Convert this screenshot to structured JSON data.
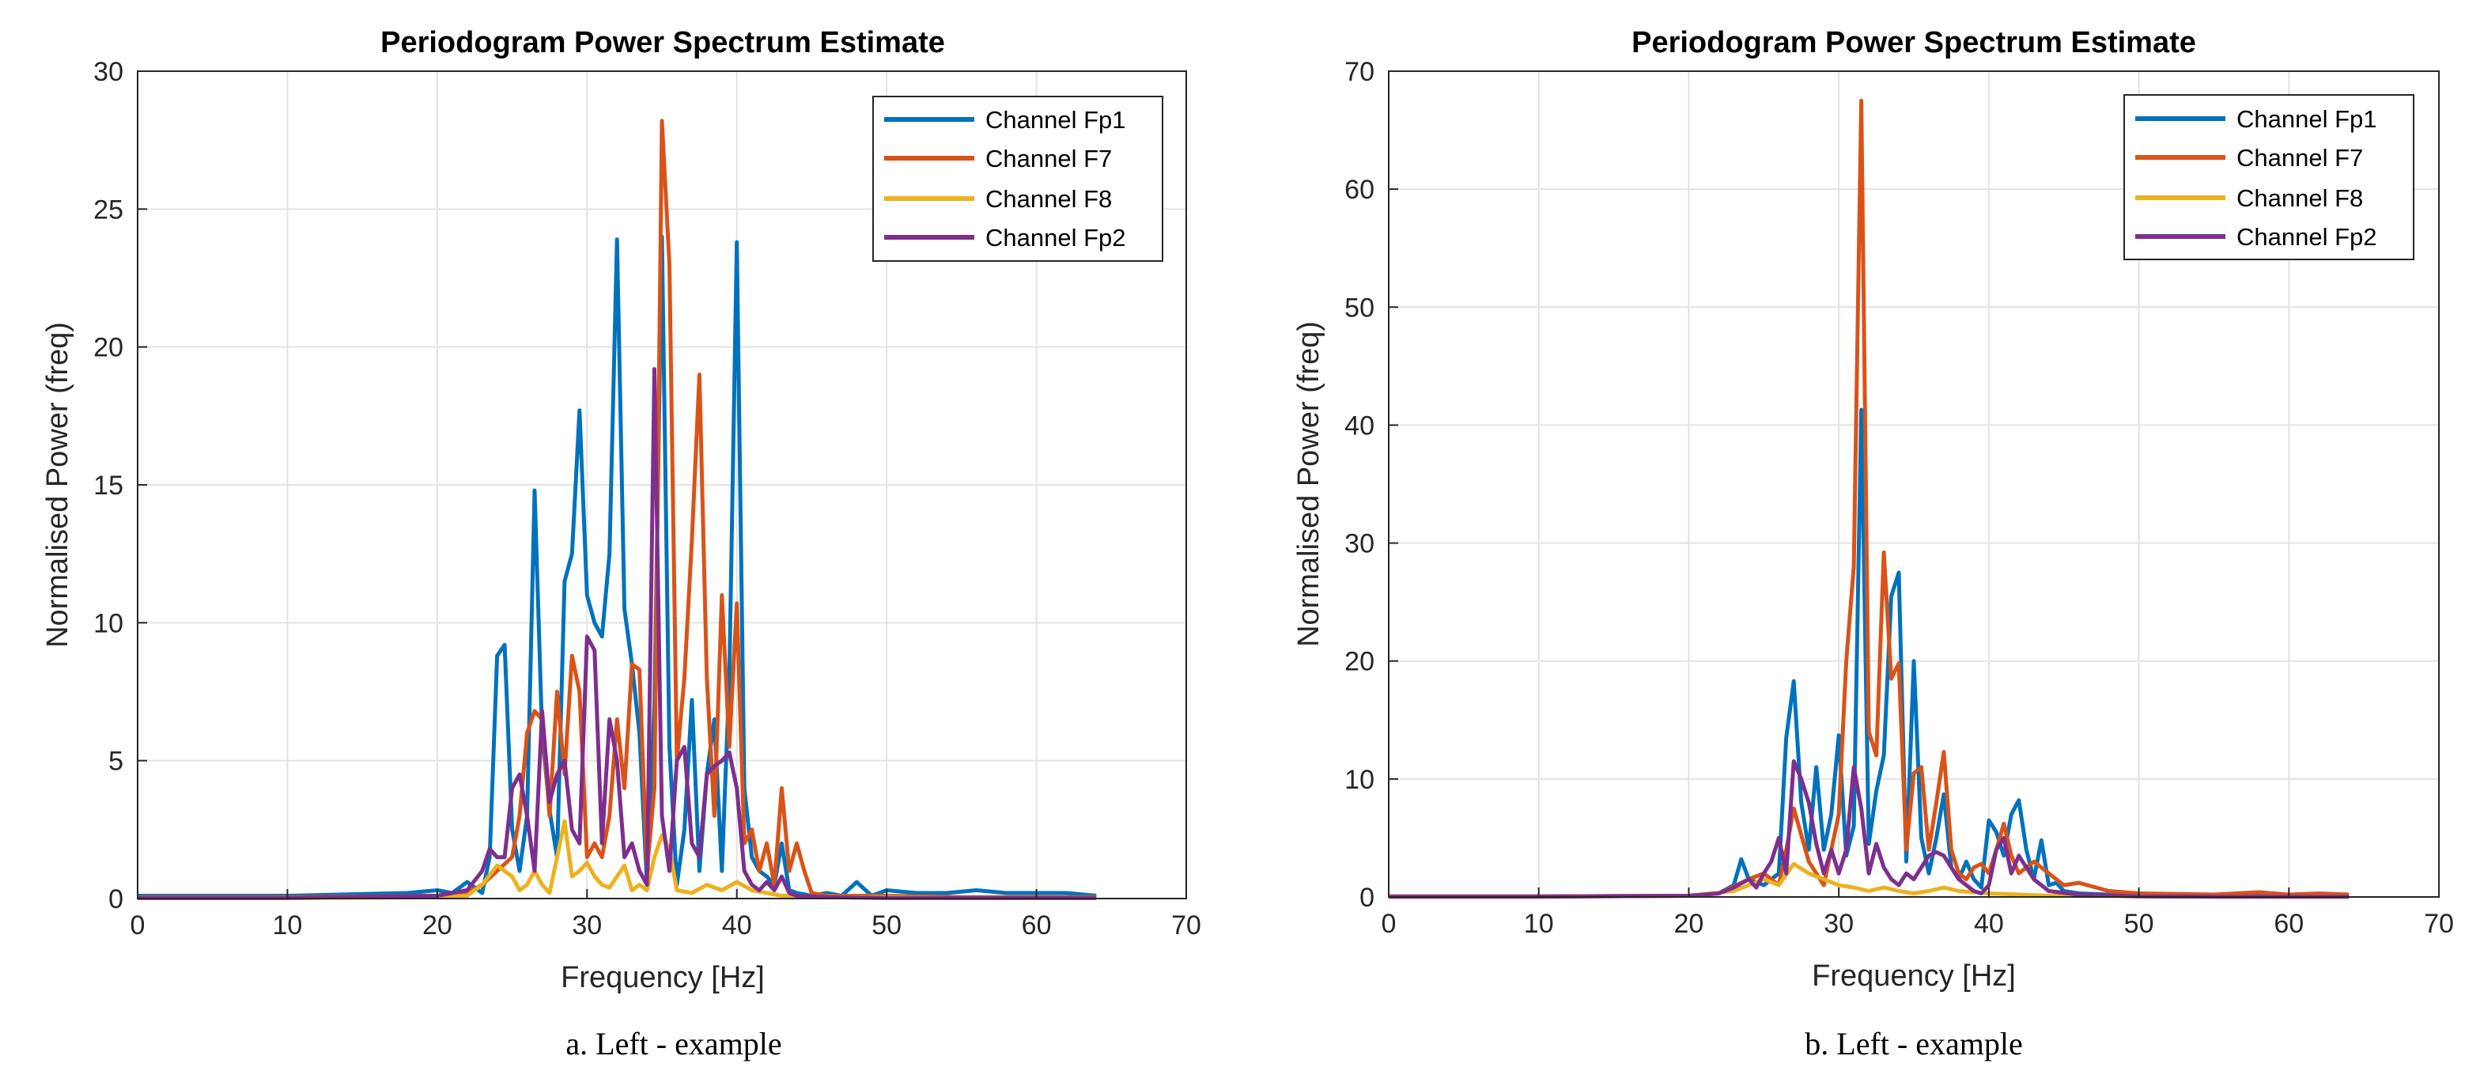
{
  "colors": {
    "Fp1": "#0072BD",
    "F7": "#D95319",
    "F8": "#EDB120",
    "Fp2": "#7E2F8E",
    "grid": "#e3e3e3",
    "axis": "#262626"
  },
  "chart_data": [
    {
      "type": "line",
      "title": "Periodogram Power Spectrum Estimate",
      "xlabel": "Frequency [Hz]",
      "ylabel": "Normalised Power (freq)",
      "caption": "a.  Left - example",
      "xlim": [
        0,
        70
      ],
      "ylim": [
        0,
        30
      ],
      "xticks": [
        0,
        10,
        20,
        30,
        40,
        50,
        60,
        70
      ],
      "yticks": [
        0,
        5,
        10,
        15,
        20,
        25,
        30
      ],
      "grid": true,
      "legend_position": "top-right",
      "series": [
        {
          "name": "Channel Fp1",
          "color_key": "Fp1",
          "x": [
            0,
            10,
            18,
            20,
            21,
            22,
            23,
            23.5,
            24,
            24.5,
            25,
            25.5,
            26,
            26.5,
            27,
            27.5,
            28,
            28.5,
            29,
            29.5,
            30,
            30.5,
            31,
            31.5,
            32,
            32.5,
            33,
            33.5,
            34,
            34.5,
            35,
            35.5,
            36,
            36.5,
            37,
            37.5,
            38,
            38.5,
            39,
            39.5,
            40,
            40.5,
            41,
            41.5,
            42,
            42.5,
            43,
            43.5,
            44,
            45,
            46,
            47,
            48,
            49,
            50,
            52,
            54,
            56,
            58,
            60,
            62,
            64
          ],
          "y": [
            0.1,
            0.1,
            0.2,
            0.3,
            0.2,
            0.6,
            0.2,
            1.5,
            8.8,
            9.2,
            2.5,
            1.0,
            3.0,
            14.8,
            6.0,
            3.2,
            1.5,
            11.5,
            12.5,
            17.7,
            11.0,
            10.0,
            9.5,
            12.5,
            23.9,
            10.5,
            8.5,
            6.0,
            0.5,
            7.0,
            24.0,
            5.5,
            0.5,
            2.5,
            7.2,
            1.0,
            4.5,
            6.5,
            1.0,
            8.0,
            23.8,
            4.0,
            1.5,
            1.0,
            0.8,
            0.5,
            2.0,
            0.3,
            0.2,
            0.1,
            0.2,
            0.1,
            0.6,
            0.1,
            0.3,
            0.2,
            0.2,
            0.3,
            0.2,
            0.2,
            0.2,
            0.1
          ]
        },
        {
          "name": "Channel F7",
          "color_key": "F7",
          "x": [
            0,
            10,
            20,
            22,
            23,
            24,
            25,
            25.5,
            26,
            26.5,
            27,
            27.5,
            28,
            28.5,
            29,
            29.5,
            30,
            30.5,
            31,
            31.5,
            32,
            32.5,
            33,
            33.5,
            34,
            34.5,
            35,
            35.5,
            36,
            36.5,
            37,
            37.5,
            38,
            38.5,
            39,
            39.5,
            40,
            40.5,
            41,
            41.5,
            42,
            42.5,
            43,
            43.5,
            44,
            44.5,
            45,
            46,
            48,
            50,
            55,
            60,
            64
          ],
          "y": [
            0.05,
            0.05,
            0.1,
            0.2,
            0.5,
            1.0,
            1.5,
            3.0,
            6.0,
            6.8,
            6.5,
            3.0,
            7.5,
            4.5,
            8.8,
            7.5,
            1.5,
            2.0,
            1.5,
            3.0,
            6.5,
            4.0,
            8.5,
            8.3,
            1.0,
            4.0,
            28.2,
            23.0,
            5.0,
            8.0,
            13.0,
            19.0,
            8.0,
            3.0,
            11.0,
            5.5,
            10.7,
            2.0,
            2.5,
            1.0,
            2.0,
            0.5,
            4.0,
            1.0,
            2.0,
            1.0,
            0.2,
            0.1,
            0.1,
            0.1,
            0.05,
            0.05,
            0.05
          ]
        },
        {
          "name": "Channel F8",
          "color_key": "F8",
          "x": [
            0,
            10,
            20,
            22,
            23,
            24,
            25,
            25.5,
            26,
            26.5,
            27,
            27.5,
            28,
            28.5,
            29,
            29.5,
            30,
            30.5,
            31,
            31.5,
            32,
            32.5,
            33,
            33.5,
            34,
            34.5,
            35,
            35.5,
            36,
            37,
            38,
            39,
            40,
            41,
            42,
            43,
            44,
            46,
            50,
            55,
            60,
            64
          ],
          "y": [
            0.02,
            0.02,
            0.05,
            0.1,
            0.5,
            1.2,
            0.8,
            0.3,
            0.5,
            1.0,
            0.5,
            0.2,
            1.5,
            2.8,
            0.8,
            1.0,
            1.3,
            0.8,
            0.5,
            0.4,
            0.8,
            1.2,
            0.3,
            0.5,
            0.3,
            1.5,
            2.3,
            1.8,
            0.3,
            0.2,
            0.5,
            0.3,
            0.6,
            0.3,
            0.2,
            0.1,
            0.1,
            0.05,
            0.05,
            0.02,
            0.02,
            0.02
          ]
        },
        {
          "name": "Channel Fp2",
          "color_key": "Fp2",
          "x": [
            0,
            10,
            20,
            22,
            23,
            23.5,
            24,
            24.5,
            25,
            25.5,
            26,
            26.5,
            27,
            27.5,
            28,
            28.5,
            29,
            29.5,
            30,
            30.5,
            31,
            31.5,
            32,
            32.5,
            33,
            33.5,
            34,
            34.5,
            35,
            35.5,
            36,
            36.5,
            37,
            37.5,
            38,
            38.5,
            39,
            39.5,
            40,
            40.5,
            41,
            41.5,
            42,
            42.5,
            43,
            43.5,
            44,
            46,
            50,
            55,
            60,
            64
          ],
          "y": [
            0.02,
            0.02,
            0.1,
            0.3,
            1.0,
            1.8,
            1.5,
            1.5,
            4.0,
            4.5,
            3.0,
            1.0,
            6.8,
            3.5,
            4.5,
            5.0,
            2.5,
            2.0,
            9.5,
            9.0,
            2.0,
            6.5,
            5.0,
            1.5,
            2.0,
            1.0,
            0.5,
            19.2,
            3.0,
            1.0,
            5.0,
            5.5,
            2.0,
            1.5,
            4.5,
            4.8,
            5.0,
            5.3,
            4.0,
            1.0,
            0.5,
            0.3,
            0.6,
            0.3,
            0.8,
            0.2,
            0.1,
            0.05,
            0.02,
            0.02,
            0.02,
            0.02
          ]
        }
      ]
    },
    {
      "type": "line",
      "title": "Periodogram Power Spectrum Estimate",
      "xlabel": "Frequency [Hz]",
      "ylabel": "Normalised Power (freq)",
      "caption": "b.  Left - example",
      "xlim": [
        0,
        70
      ],
      "ylim": [
        0,
        70
      ],
      "xticks": [
        0,
        10,
        20,
        30,
        40,
        50,
        60,
        70
      ],
      "yticks": [
        0,
        10,
        20,
        30,
        40,
        50,
        60,
        70
      ],
      "grid": true,
      "legend_position": "top-right",
      "series": [
        {
          "name": "Channel Fp1",
          "color_key": "Fp1",
          "x": [
            0,
            10,
            20,
            22,
            23,
            23.5,
            24,
            25,
            26,
            26.5,
            27,
            27.5,
            28,
            28.5,
            29,
            29.5,
            30,
            30.5,
            31,
            31.5,
            32,
            32.5,
            33,
            33.5,
            34,
            34.5,
            35,
            35.5,
            36,
            36.5,
            37,
            37.5,
            38,
            38.5,
            39,
            39.5,
            40,
            40.5,
            41,
            41.5,
            42,
            42.5,
            43,
            43.5,
            44,
            44.5,
            45,
            46,
            48,
            50,
            55,
            60,
            64
          ],
          "y": [
            0.05,
            0.05,
            0.1,
            0.3,
            1.0,
            3.2,
            1.5,
            1.0,
            2.0,
            13.5,
            18.3,
            8.0,
            4.0,
            11.0,
            4.0,
            7.0,
            13.7,
            3.5,
            6.0,
            41.3,
            4.5,
            9.0,
            12.0,
            25.5,
            27.5,
            3.0,
            20.0,
            5.0,
            2.0,
            5.0,
            8.7,
            2.5,
            1.5,
            3.0,
            1.5,
            0.8,
            6.5,
            5.5,
            3.5,
            7.0,
            8.2,
            4.0,
            1.5,
            4.8,
            1.0,
            1.2,
            0.5,
            0.3,
            0.2,
            0.1,
            0.1,
            0.1,
            0.05
          ]
        },
        {
          "name": "Channel F7",
          "color_key": "F7",
          "x": [
            0,
            10,
            20,
            22,
            24,
            25,
            26,
            26.5,
            27,
            28,
            29,
            30,
            30.5,
            31,
            31.5,
            32,
            32.5,
            33,
            33.5,
            34,
            34.5,
            35,
            35.5,
            36,
            36.5,
            37,
            37.5,
            38,
            38.5,
            39,
            39.5,
            40,
            40.5,
            41,
            41.5,
            42,
            43,
            44,
            45,
            46,
            48,
            50,
            55,
            58,
            60,
            62,
            64
          ],
          "y": [
            0.05,
            0.05,
            0.1,
            0.3,
            1.5,
            2.0,
            1.0,
            4.0,
            7.5,
            3.0,
            1.0,
            7.0,
            20.0,
            28.0,
            67.5,
            14.0,
            12.0,
            29.2,
            18.5,
            19.8,
            4.0,
            10.5,
            11.0,
            4.0,
            8.0,
            12.3,
            4.0,
            2.0,
            1.5,
            2.5,
            2.8,
            2.0,
            4.0,
            6.2,
            3.5,
            2.0,
            3.0,
            2.0,
            1.0,
            1.2,
            0.5,
            0.3,
            0.2,
            0.4,
            0.2,
            0.3,
            0.2
          ]
        },
        {
          "name": "Channel F8",
          "color_key": "F8",
          "x": [
            0,
            10,
            20,
            23,
            24,
            25,
            26,
            27,
            28,
            29,
            30,
            31,
            32,
            33,
            34,
            35,
            36,
            37,
            38,
            40,
            42,
            44,
            46,
            50,
            55,
            60,
            64
          ],
          "y": [
            0.02,
            0.02,
            0.1,
            0.5,
            1.0,
            1.5,
            1.0,
            2.8,
            2.0,
            1.5,
            1.0,
            0.8,
            0.5,
            0.8,
            0.5,
            0.3,
            0.5,
            0.8,
            0.5,
            0.3,
            0.2,
            0.1,
            0.1,
            0.05,
            0.02,
            0.02,
            0.02
          ]
        },
        {
          "name": "Channel Fp2",
          "color_key": "Fp2",
          "x": [
            0,
            10,
            20,
            22,
            23,
            24,
            24.5,
            25,
            25.5,
            26,
            26.5,
            27,
            27.5,
            28,
            28.5,
            29,
            29.5,
            30,
            30.5,
            31,
            31.5,
            32,
            32.5,
            33,
            33.5,
            34,
            34.5,
            35,
            35.5,
            36,
            36.5,
            37,
            37.5,
            38,
            38.5,
            39,
            39.5,
            40,
            40.5,
            41,
            41.5,
            42,
            42.5,
            43,
            44,
            46,
            50,
            55,
            60,
            64
          ],
          "y": [
            0.02,
            0.02,
            0.1,
            0.3,
            0.8,
            1.5,
            0.8,
            2.0,
            3.0,
            5.0,
            2.0,
            11.5,
            10.0,
            8.0,
            4.5,
            2.0,
            4.0,
            2.0,
            4.0,
            11.0,
            7.5,
            2.0,
            4.5,
            2.5,
            1.5,
            1.0,
            2.0,
            1.5,
            2.5,
            3.5,
            3.8,
            3.5,
            2.5,
            1.5,
            1.0,
            0.5,
            0.3,
            1.0,
            4.0,
            5.0,
            2.0,
            3.5,
            2.5,
            1.5,
            0.5,
            0.2,
            0.05,
            0.02,
            0.02,
            0.02
          ]
        }
      ]
    }
  ]
}
